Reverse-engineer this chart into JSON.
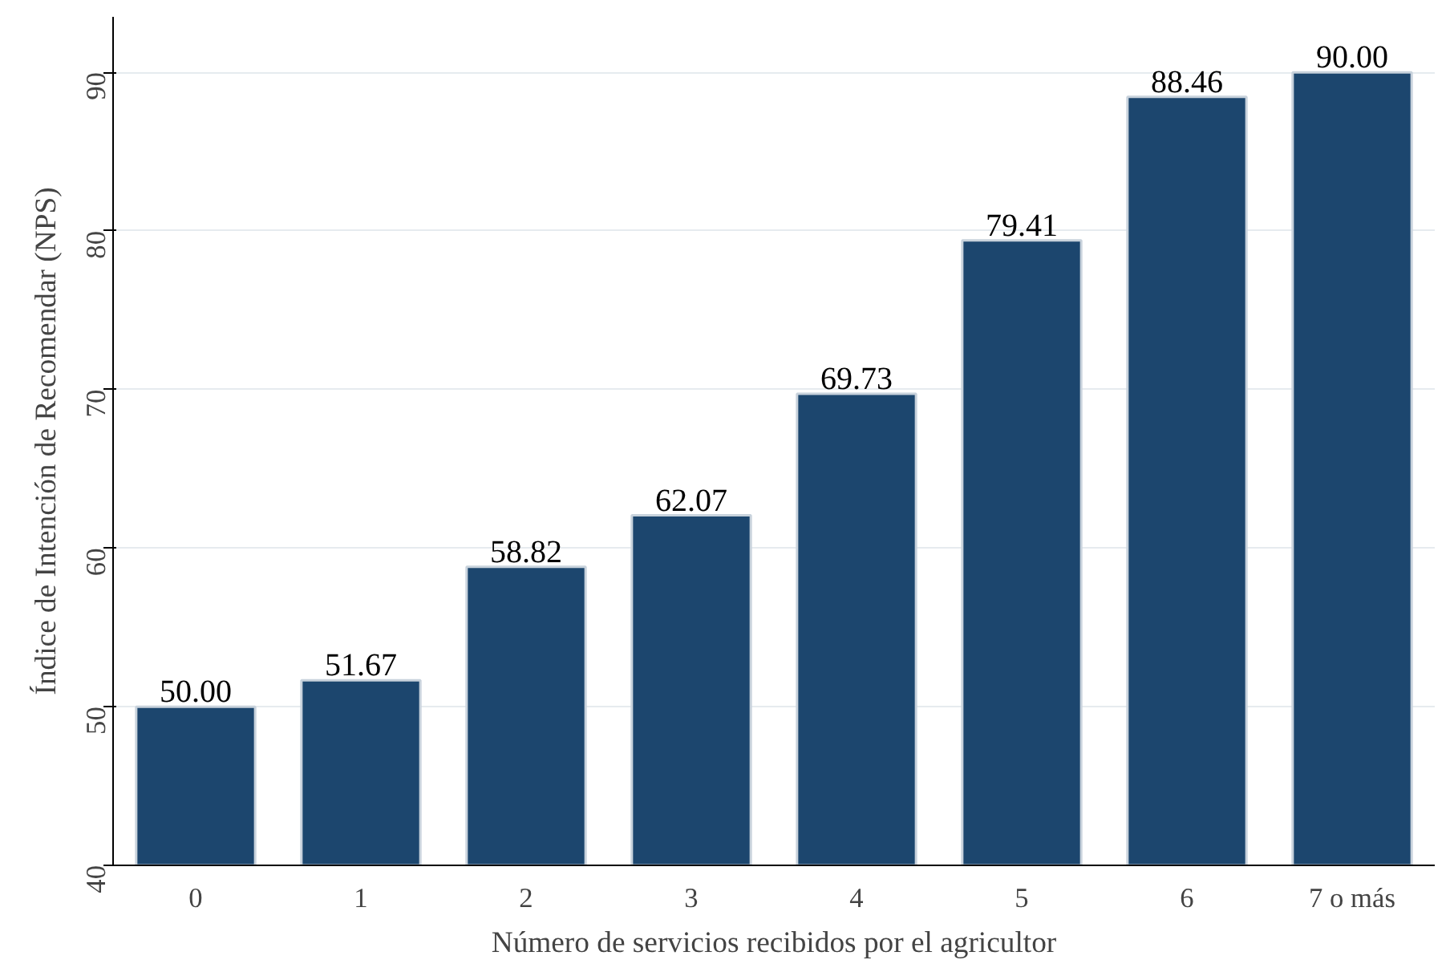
{
  "chart_data": {
    "type": "bar",
    "xlabel": "Número de servicios recibidos por el agricultor",
    "ylabel": "Índice de Intención de Recomendar (NPS)",
    "categories": [
      "0",
      "1",
      "2",
      "3",
      "4",
      "5",
      "6",
      "7 o más"
    ],
    "values": [
      50.0,
      51.67,
      58.82,
      62.07,
      69.73,
      79.41,
      88.46,
      90.0
    ],
    "value_labels": [
      "50.00",
      "51.67",
      "58.82",
      "62.07",
      "69.73",
      "79.41",
      "88.46",
      "90.00"
    ],
    "color": "#1c466e",
    "ylim": [
      40,
      93.5
    ],
    "yticks": [
      40,
      50,
      60,
      70,
      80,
      90
    ],
    "grid": "y"
  }
}
